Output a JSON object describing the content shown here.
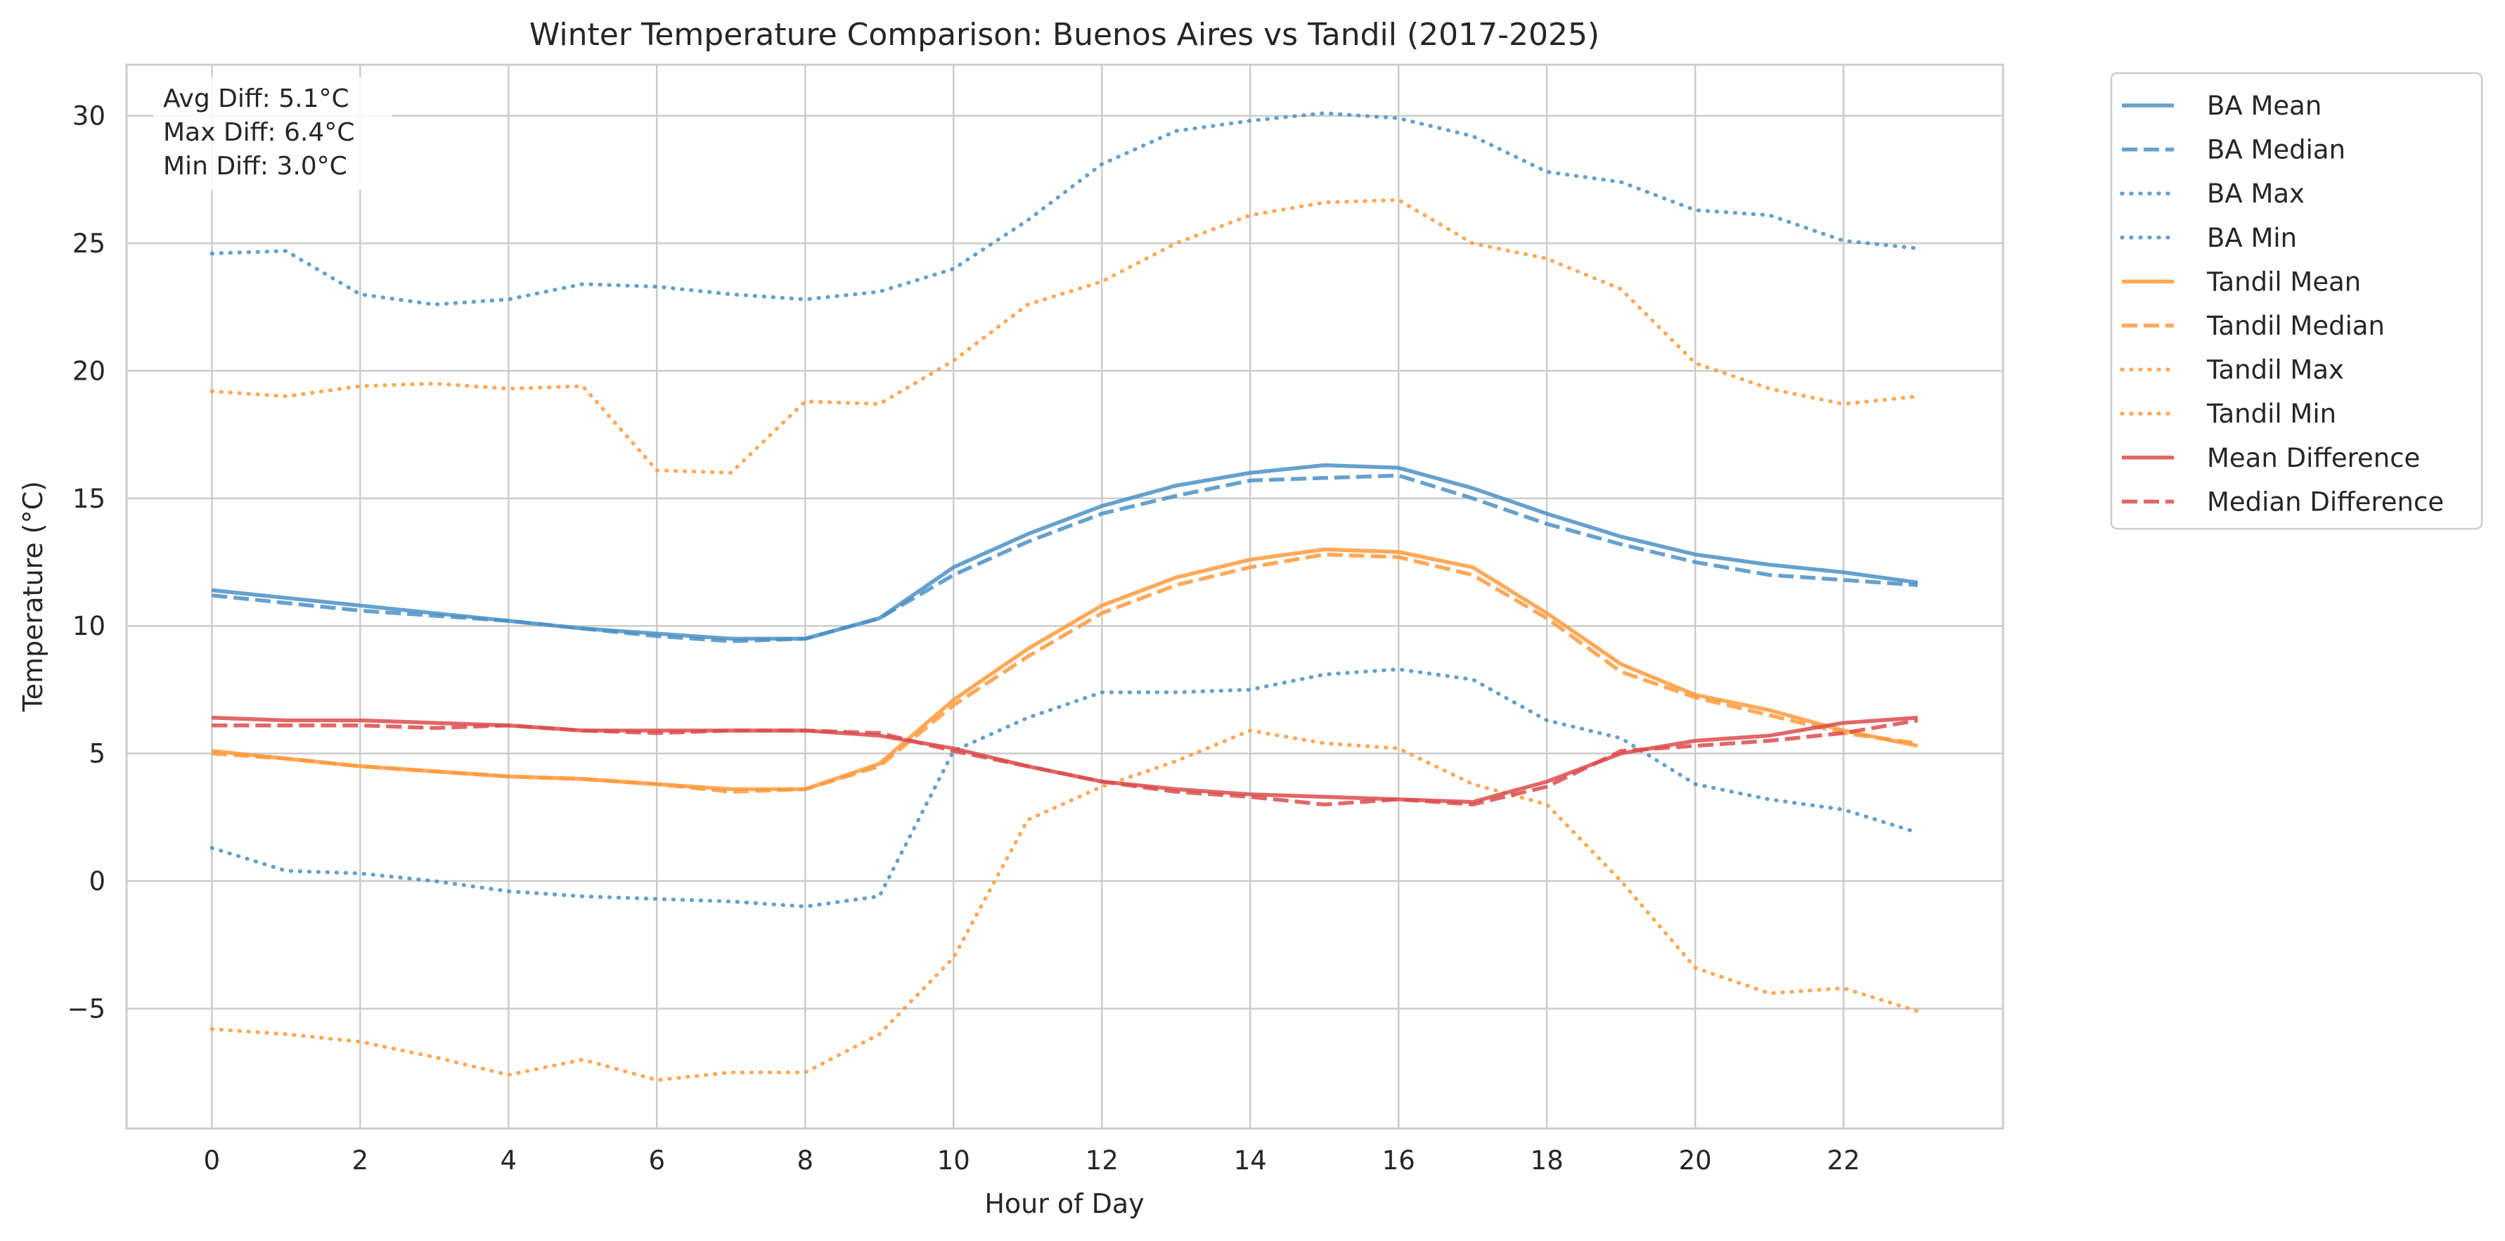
{
  "chart_data": {
    "type": "line",
    "title": "Winter Temperature Comparison: Buenos Aires vs Tandil (2017-2025)",
    "xlabel": "Hour of Day",
    "ylabel": "Temperature (°C)",
    "xlim": [
      -1.15,
      24.15
    ],
    "ylim": [
      -9.7,
      32.0
    ],
    "xticks": [
      0,
      2,
      4,
      6,
      8,
      10,
      12,
      14,
      16,
      18,
      20,
      22
    ],
    "yticks": [
      -5,
      0,
      5,
      10,
      15,
      20,
      25,
      30
    ],
    "ytick_labels": [
      "−5",
      "0",
      "5",
      "10",
      "15",
      "20",
      "25",
      "30"
    ],
    "grid": true,
    "legend_position": "outside-right-top",
    "annotation": [
      "Avg Diff: 5.1°C",
      "Max Diff: 6.4°C",
      "Min Diff: 3.0°C"
    ],
    "colors": {
      "ba": "#4a90c4",
      "tandil": "#ff9a3c",
      "diff": "#dc4c4c"
    },
    "x": [
      0,
      1,
      2,
      3,
      4,
      5,
      6,
      7,
      8,
      9,
      10,
      11,
      12,
      13,
      14,
      15,
      16,
      17,
      18,
      19,
      20,
      21,
      22,
      23
    ],
    "series": [
      {
        "name": "BA Mean",
        "color": "#4a90c4",
        "dash": "solid",
        "values": [
          11.4,
          11.1,
          10.8,
          10.5,
          10.2,
          9.9,
          9.7,
          9.5,
          9.5,
          10.3,
          12.3,
          13.6,
          14.7,
          15.5,
          16.0,
          16.3,
          16.2,
          15.4,
          14.4,
          13.5,
          12.8,
          12.4,
          12.1,
          11.7
        ]
      },
      {
        "name": "BA Median",
        "color": "#4a90c4",
        "dash": "dashed",
        "values": [
          11.2,
          10.9,
          10.6,
          10.4,
          10.2,
          9.9,
          9.6,
          9.4,
          9.5,
          10.3,
          12.0,
          13.3,
          14.4,
          15.1,
          15.7,
          15.8,
          15.9,
          15.0,
          14.0,
          13.2,
          12.5,
          12.0,
          11.8,
          11.6
        ]
      },
      {
        "name": "BA Max",
        "color": "#4a90c4",
        "dash": "dotted",
        "values": [
          24.6,
          24.7,
          23.0,
          22.6,
          22.8,
          23.4,
          23.3,
          23.0,
          22.8,
          23.1,
          24.0,
          25.9,
          28.1,
          29.4,
          29.8,
          30.1,
          29.9,
          29.2,
          27.8,
          27.4,
          26.3,
          26.1,
          25.1,
          24.8
        ]
      },
      {
        "name": "BA Min",
        "color": "#4a90c4",
        "dash": "dotted",
        "values": [
          1.3,
          0.4,
          0.3,
          0.0,
          -0.4,
          -0.6,
          -0.7,
          -0.8,
          -1.0,
          -0.6,
          5.1,
          6.4,
          7.4,
          7.4,
          7.5,
          8.1,
          8.3,
          7.9,
          6.3,
          5.6,
          3.8,
          3.2,
          2.8,
          1.9
        ]
      },
      {
        "name": "Tandil Mean",
        "color": "#ff9a3c",
        "dash": "solid",
        "values": [
          5.1,
          4.8,
          4.5,
          4.3,
          4.1,
          4.0,
          3.8,
          3.6,
          3.6,
          4.6,
          7.1,
          9.1,
          10.8,
          11.9,
          12.6,
          13.0,
          12.9,
          12.3,
          10.5,
          8.5,
          7.3,
          6.7,
          5.9,
          5.3
        ]
      },
      {
        "name": "Tandil Median",
        "color": "#ff9a3c",
        "dash": "dashed",
        "values": [
          5.0,
          4.8,
          4.5,
          4.3,
          4.1,
          4.0,
          3.8,
          3.5,
          3.6,
          4.5,
          6.9,
          8.8,
          10.5,
          11.6,
          12.3,
          12.8,
          12.7,
          12.0,
          10.3,
          8.2,
          7.2,
          6.5,
          5.8,
          5.4
        ]
      },
      {
        "name": "Tandil Max",
        "color": "#ff9a3c",
        "dash": "dotted",
        "values": [
          19.2,
          19.0,
          19.4,
          19.5,
          19.3,
          19.4,
          16.1,
          16.0,
          18.8,
          18.7,
          20.4,
          22.6,
          23.5,
          25.0,
          26.1,
          26.6,
          26.7,
          25.0,
          24.4,
          23.2,
          20.3,
          19.3,
          18.7,
          19.0
        ]
      },
      {
        "name": "Tandil Min",
        "color": "#ff9a3c",
        "dash": "dotted",
        "values": [
          -5.8,
          -6.0,
          -6.3,
          -6.9,
          -7.6,
          -7.0,
          -7.8,
          -7.5,
          -7.5,
          -6.0,
          -3.0,
          2.4,
          3.7,
          4.7,
          5.9,
          5.4,
          5.2,
          3.8,
          3.0,
          0.0,
          -3.4,
          -4.4,
          -4.2,
          -5.1
        ]
      },
      {
        "name": "Mean Difference",
        "color": "#dc4c4c",
        "dash": "solid",
        "values": [
          6.4,
          6.3,
          6.3,
          6.2,
          6.1,
          5.9,
          5.9,
          5.9,
          5.9,
          5.7,
          5.2,
          4.5,
          3.9,
          3.6,
          3.4,
          3.3,
          3.2,
          3.1,
          3.9,
          5.0,
          5.5,
          5.7,
          6.2,
          6.4
        ]
      },
      {
        "name": "Median Difference",
        "color": "#dc4c4c",
        "dash": "dashed",
        "values": [
          6.1,
          6.1,
          6.1,
          6.0,
          6.1,
          5.9,
          5.8,
          5.9,
          5.9,
          5.8,
          5.1,
          4.5,
          3.9,
          3.5,
          3.3,
          3.0,
          3.2,
          3.0,
          3.7,
          5.1,
          5.3,
          5.5,
          5.8,
          6.3
        ]
      }
    ]
  }
}
